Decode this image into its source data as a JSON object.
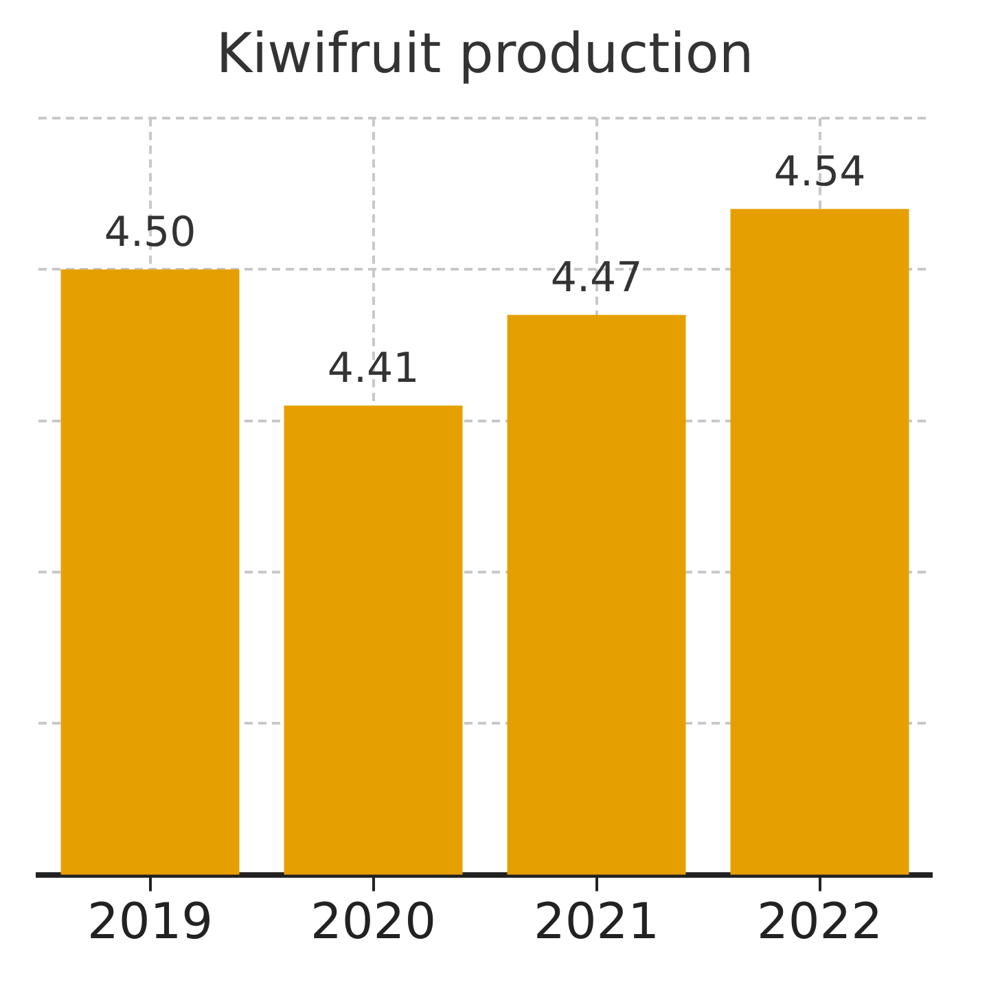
{
  "chart_data": {
    "type": "bar",
    "title": "Kiwifruit production",
    "categories": [
      "2019",
      "2020",
      "2021",
      "2022"
    ],
    "values": [
      4.5,
      4.41,
      4.47,
      4.54
    ],
    "value_labels": [
      "4.50",
      "4.41",
      "4.47",
      "4.54"
    ],
    "color": "#e69f00",
    "ylim": [
      4.1,
      4.6
    ],
    "yticks": [
      4.1,
      4.2,
      4.3,
      4.4,
      4.5,
      4.6
    ],
    "grid": true,
    "tick_labels": "x"
  }
}
